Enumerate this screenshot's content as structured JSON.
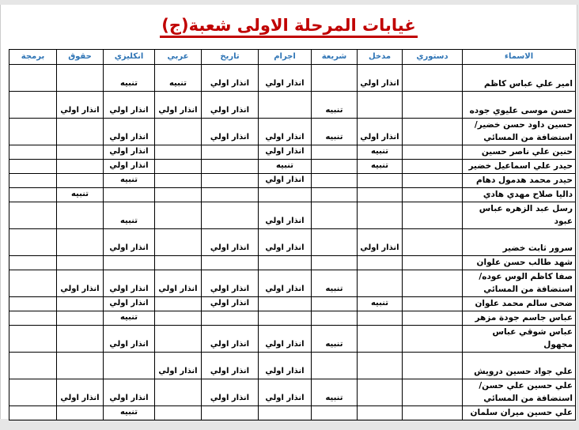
{
  "title": "غيابات المرحلة الاولى شعبة(ج)",
  "colors": {
    "title": "#c00000",
    "header": "#2e74b5"
  },
  "table": {
    "columns": [
      "الاسماء",
      "دستوري",
      "مدخل",
      "شريعة",
      "اجرام",
      "تاريخ",
      "عربي",
      "انكليزي",
      "حقوق",
      "برمجة"
    ],
    "rows": [
      [
        "امير علي عباس كاظم",
        "",
        "انذار اولي",
        "",
        "انذار اولي",
        "انذار اولي",
        "تنبيه",
        "تنبيه",
        "",
        ""
      ],
      [
        "حسن موسى عليوي جوده",
        "",
        "",
        "تنبيه",
        "",
        "انذار اولي",
        "انذار اولي",
        "انذار اولي",
        "انذار اولي",
        ""
      ],
      [
        "حسين داود حسن خضير/ استضافة من المسائي",
        "",
        "انذار اولي",
        "تنبيه",
        "انذار اولي",
        "انذار اولي",
        "",
        "انذار اولي",
        "",
        ""
      ],
      [
        "حنين علي ناصر حسين",
        "",
        "تنبيه",
        "",
        "انذار اولي",
        "",
        "",
        "انذار اولي",
        "",
        ""
      ],
      [
        "حيدر علي اسماعيل خضير",
        "",
        "تنبيه",
        "",
        "تنبيه",
        "",
        "",
        "انذار اولي",
        "",
        ""
      ],
      [
        "حيدر محمد هدمول دهام",
        "",
        "",
        "",
        "انذار اولي",
        "",
        "",
        "تنبيه",
        "",
        ""
      ],
      [
        "داليا صلاح مهدي هادي",
        "",
        "",
        "",
        "",
        "",
        "",
        "",
        "تنبيه",
        ""
      ],
      [
        "رسل عبد الزهره عباس عبود",
        "",
        "",
        "",
        "انذار اولي",
        "",
        "",
        "تنبيه",
        "",
        ""
      ],
      [
        "سرور ثابت خضير",
        "",
        "انذار اولي",
        "",
        "انذار اولي",
        "انذار اولي",
        "",
        "انذار اولي",
        "",
        ""
      ],
      [
        "شهد طالب حسن علوان",
        "",
        "",
        "",
        "",
        "",
        "",
        "",
        "",
        ""
      ],
      [
        "صفا كاظم الوس عوده/ استضافة من المسائي",
        "",
        "",
        "تنبيه",
        "انذار اولي",
        "انذار اولي",
        "انذار اولي",
        "انذار اولي",
        "انذار اولي",
        ""
      ],
      [
        "ضحى سالم محمد علوان",
        "",
        "تنبيه",
        "",
        "",
        "انذار اولي",
        "",
        "انذار اولي",
        "",
        ""
      ],
      [
        "عباس جاسم جودة مزهر",
        "",
        "",
        "",
        "",
        "",
        "",
        "تنبيه",
        "",
        ""
      ],
      [
        "عباس شوقي عباس مجهول",
        "",
        "",
        "تنبيه",
        "انذار اولي",
        "انذار اولي",
        "",
        "انذار اولي",
        "",
        ""
      ],
      [
        "علي جواد حسين درويش",
        "",
        "",
        "",
        "انذار اولي",
        "انذار اولي",
        "انذار اولي",
        "",
        "",
        ""
      ],
      [
        "علي حسين علي حسن/ استضافة من المسائي",
        "",
        "",
        "تنبيه",
        "انذار اولي",
        "انذار اولي",
        "",
        "انذار اولي",
        "انذار اولي",
        ""
      ],
      [
        "علي حسين ميران سلمان",
        "",
        "",
        "",
        "",
        "",
        "",
        "تنبيه",
        "",
        ""
      ]
    ]
  }
}
